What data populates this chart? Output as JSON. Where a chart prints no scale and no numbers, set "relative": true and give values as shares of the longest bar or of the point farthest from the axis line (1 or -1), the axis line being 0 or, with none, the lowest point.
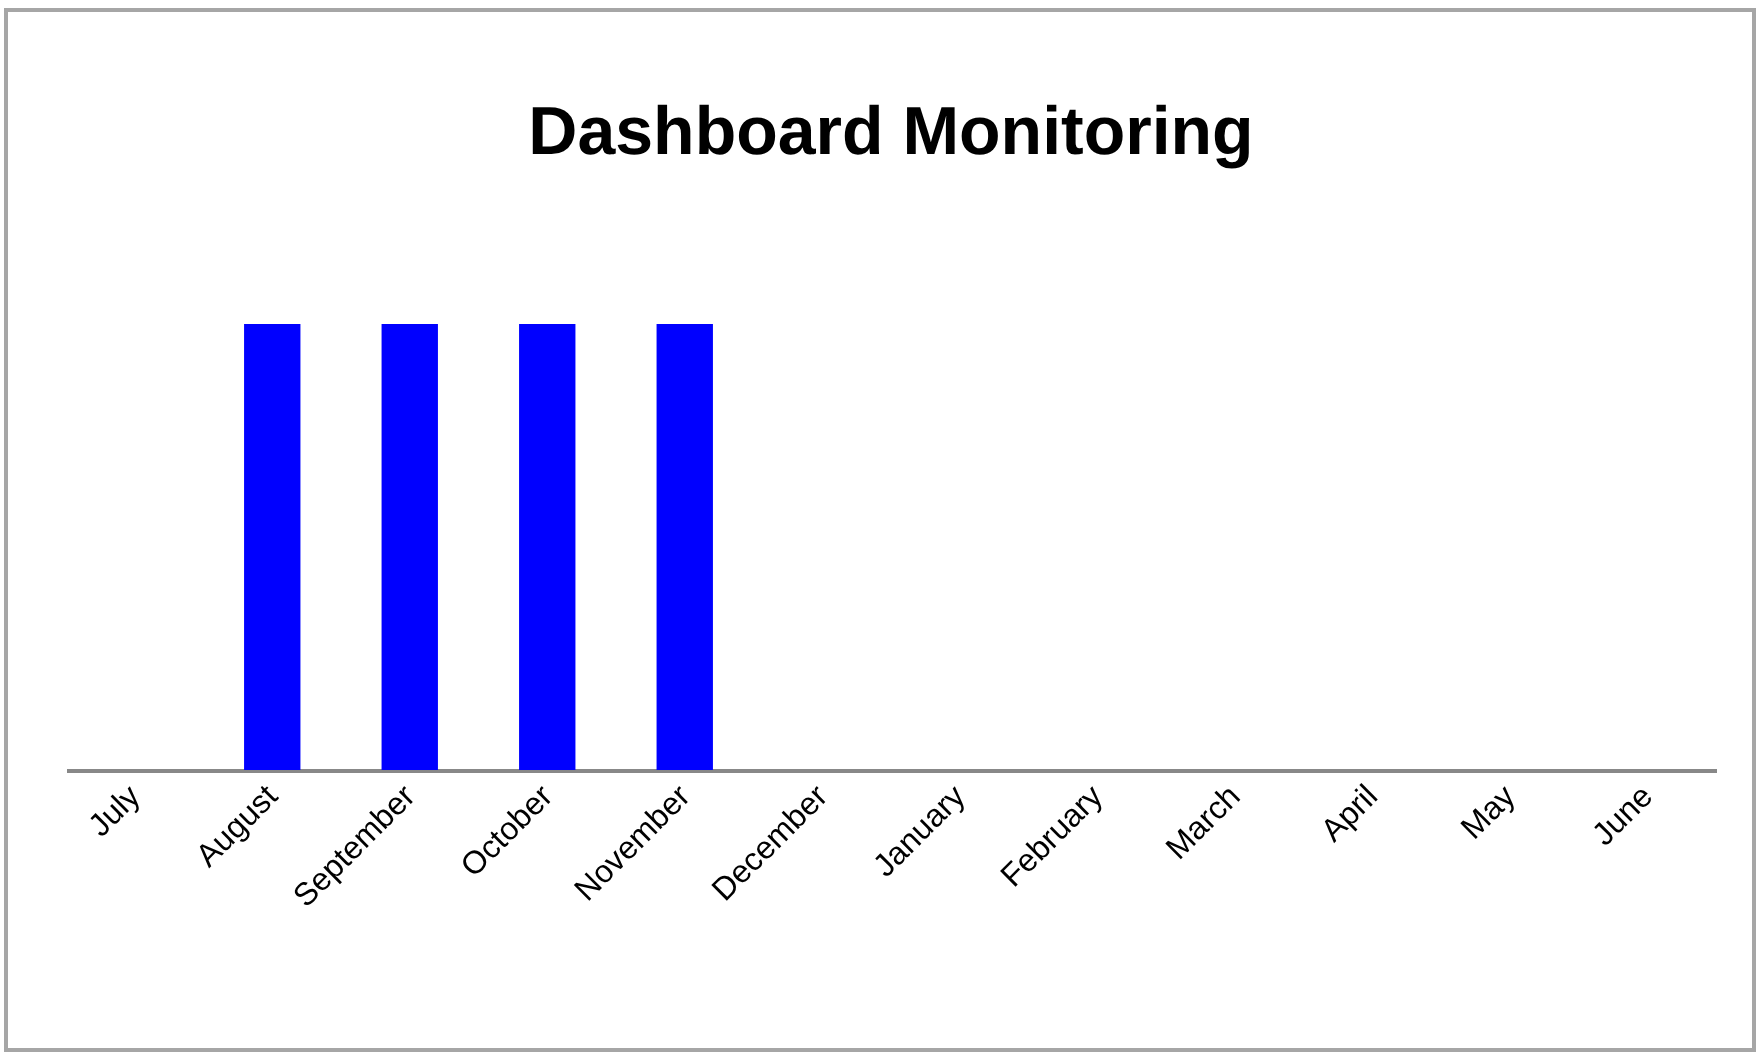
{
  "chart_data": {
    "type": "bar",
    "title": "Dashboard Monitoring",
    "categories": [
      "July",
      "August",
      "September",
      "October",
      "November",
      "December",
      "January",
      "February",
      "March",
      "April",
      "May",
      "June"
    ],
    "values": [
      0,
      1,
      1,
      1,
      1,
      0,
      0,
      0,
      0,
      0,
      0,
      0
    ],
    "color": "#0000ff",
    "relative": true
  }
}
